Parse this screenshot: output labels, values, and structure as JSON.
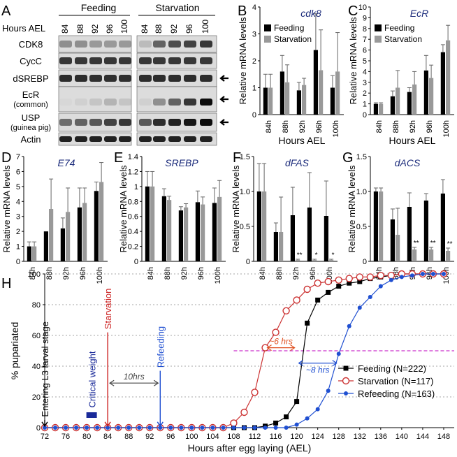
{
  "panel_letters": [
    "A",
    "B",
    "C",
    "D",
    "E",
    "F",
    "G",
    "H"
  ],
  "blot": {
    "group_feeding": "Feeding",
    "group_starvation": "Starvation",
    "hours_label": "Hours AEL",
    "lanes_feeding": [
      "84",
      "88",
      "92",
      "96",
      "100"
    ],
    "lanes_starvation": [
      "84",
      "88",
      "92",
      "96",
      "100"
    ],
    "rows": [
      {
        "line1": "CDK8",
        "line2": "",
        "arrow": false
      },
      {
        "line1": "CycC",
        "line2": "",
        "arrow": false
      },
      {
        "line1": "dSREBP",
        "line2": "",
        "arrow": true
      },
      {
        "line1": "EcR",
        "line2": "(common)",
        "arrow": true
      },
      {
        "line1": "USP",
        "line2": "(guinea pig)",
        "arrow": true
      },
      {
        "line1": "Actin",
        "line2": "",
        "arrow": false
      }
    ],
    "intensity_feeding": [
      [
        0.35,
        0.35,
        0.3,
        0.3,
        0.3
      ],
      [
        0.75,
        0.75,
        0.75,
        0.75,
        0.75
      ],
      [
        0.8,
        0.8,
        0.78,
        0.78,
        0.78
      ],
      [
        0.02,
        0.05,
        0.1,
        0.18,
        0.1
      ],
      [
        0.5,
        0.55,
        0.6,
        0.7,
        0.75
      ],
      [
        0.85,
        0.85,
        0.85,
        0.85,
        0.85
      ]
    ],
    "intensity_starvation": [
      [
        0.15,
        0.55,
        0.65,
        0.7,
        0.75
      ],
      [
        0.75,
        0.75,
        0.75,
        0.75,
        0.75
      ],
      [
        0.8,
        0.8,
        0.8,
        0.8,
        0.8
      ],
      [
        0.05,
        0.35,
        0.55,
        0.75,
        0.95
      ],
      [
        0.6,
        0.8,
        0.85,
        0.9,
        0.95
      ],
      [
        0.85,
        0.85,
        0.85,
        0.85,
        0.85
      ]
    ]
  },
  "chart_data": [
    {
      "panel": "B",
      "type": "bar",
      "title": "cdk8",
      "ylabel": "Relative mRNA levels",
      "xlabel": "Hours AEL",
      "categories": [
        "84h",
        "88h",
        "92h",
        "96h",
        "100h"
      ],
      "ylim": [
        0,
        4
      ],
      "yticks": [
        0,
        1,
        2,
        3,
        4
      ],
      "legend": true,
      "series": [
        {
          "name": "Feeding",
          "color": "#000000",
          "values": [
            1.0,
            1.6,
            0.9,
            2.4,
            1.0
          ],
          "errors": [
            0.5,
            0.6,
            0.3,
            1.35,
            0.45
          ]
        },
        {
          "name": "Starvation",
          "color": "#999999",
          "values": [
            1.0,
            1.2,
            1.1,
            1.65,
            1.6
          ],
          "errors": [
            0.5,
            0.65,
            0.25,
            1.5,
            1.45
          ]
        }
      ],
      "annotations": []
    },
    {
      "panel": "C",
      "type": "bar",
      "title": "EcR",
      "ylabel": "Relative mRNA levels",
      "xlabel": "Hours AEL",
      "categories": [
        "84h",
        "88h",
        "92h",
        "96h",
        "100h"
      ],
      "ylim": [
        0,
        10
      ],
      "yticks": [
        0,
        1,
        2,
        3,
        4,
        5,
        6,
        7,
        8,
        9,
        10
      ],
      "legend": true,
      "series": [
        {
          "name": "Feeding",
          "color": "#000000",
          "values": [
            1.0,
            1.7,
            2.1,
            4.1,
            5.8
          ],
          "errors": [
            0.1,
            0.5,
            0.4,
            1.4,
            0.7
          ]
        },
        {
          "name": "Starvation",
          "color": "#999999",
          "values": [
            1.0,
            2.5,
            2.8,
            3.4,
            6.9
          ],
          "errors": [
            0.1,
            1.6,
            1.2,
            1.2,
            1.4
          ]
        }
      ],
      "annotations": []
    },
    {
      "panel": "D",
      "type": "bar",
      "title": "E74",
      "ylabel": "Relative mRNA levels",
      "xlabel": "",
      "categories": [
        "84h",
        "88h",
        "92h",
        "96h",
        "100h"
      ],
      "ylim": [
        0,
        7
      ],
      "yticks": [
        0,
        1,
        2,
        3,
        4,
        5,
        6,
        7
      ],
      "legend": false,
      "series": [
        {
          "name": "Feeding",
          "color": "#000000",
          "values": [
            1.0,
            2.0,
            2.2,
            3.6,
            4.7
          ],
          "errors": [
            0.3,
            0,
            0.7,
            1.3,
            0.6
          ]
        },
        {
          "name": "Starvation",
          "color": "#999999",
          "values": [
            1.0,
            3.5,
            3.3,
            3.9,
            5.3
          ],
          "errors": [
            0.3,
            2.0,
            1.6,
            1.0,
            1.3
          ]
        }
      ],
      "annotations": []
    },
    {
      "panel": "E",
      "type": "bar",
      "title": "SREBP",
      "ylabel": "Relative mRNA levels",
      "xlabel": "",
      "categories": [
        "84h",
        "88h",
        "92h",
        "96h",
        "100h"
      ],
      "ylim": [
        0,
        1.4
      ],
      "yticks": [
        0,
        0.2,
        0.4,
        0.6,
        0.8,
        1,
        1.2,
        1.4
      ],
      "ytick_labels": [
        "0",
        "0.2",
        "0.4",
        "0.6",
        "0.8",
        "1",
        "1.2",
        "1.4"
      ],
      "legend": false,
      "series": [
        {
          "name": "Feeding",
          "color": "#000000",
          "values": [
            1.0,
            0.87,
            0.68,
            0.79,
            0.78
          ],
          "errors": [
            0.2,
            0.1,
            0.05,
            0.15,
            0.2
          ]
        },
        {
          "name": "Starvation",
          "color": "#999999",
          "values": [
            1.0,
            0.82,
            0.72,
            0.76,
            0.86
          ],
          "errors": [
            0.2,
            0.05,
            0.05,
            0.1,
            0.22
          ]
        }
      ],
      "annotations": []
    },
    {
      "panel": "F",
      "type": "bar",
      "title": "dFAS",
      "ylabel": "Relative mRNA levels",
      "xlabel": "",
      "categories": [
        "84h",
        "88h",
        "92h",
        "96h",
        "100h"
      ],
      "ylim": [
        0,
        1.5
      ],
      "yticks": [
        0,
        0.5,
        1,
        1.5
      ],
      "ytick_labels": [
        "0",
        "0.5",
        "1.0",
        "1.5"
      ],
      "legend": false,
      "series": [
        {
          "name": "Feeding",
          "color": "#000000",
          "values": [
            1.0,
            0.42,
            0.66,
            0.77,
            0.65
          ],
          "errors": [
            0.4,
            0.13,
            0.4,
            0.5,
            0.5
          ]
        },
        {
          "name": "Starvation",
          "color": "#999999",
          "values": [
            1.0,
            0.42,
            0.02,
            0.02,
            0.02
          ],
          "errors": [
            0.4,
            0.5,
            0.01,
            0.01,
            0.01
          ]
        }
      ],
      "annotations": [
        "",
        "",
        "**",
        "*",
        "*"
      ]
    },
    {
      "panel": "G",
      "type": "bar",
      "title": "dACS",
      "ylabel": "Relative mRNA levels",
      "xlabel": "",
      "categories": [
        "84h",
        "88h",
        "92h",
        "96h",
        "100h"
      ],
      "ylim": [
        0,
        1.5
      ],
      "yticks": [
        0,
        0.5,
        1,
        1.5
      ],
      "ytick_labels": [
        "0",
        "0.5",
        "1.0",
        "1.5"
      ],
      "legend": false,
      "series": [
        {
          "name": "Feeding",
          "color": "#000000",
          "values": [
            1.0,
            0.6,
            0.78,
            0.87,
            0.97
          ],
          "errors": [
            0.05,
            0.15,
            0.2,
            0.1,
            0.2
          ]
        },
        {
          "name": "Starvation",
          "color": "#999999",
          "values": [
            1.0,
            0.38,
            0.17,
            0.17,
            0.15
          ],
          "errors": [
            0.05,
            0.38,
            0.03,
            0.03,
            0.04
          ]
        }
      ],
      "annotations": [
        "",
        "",
        "**",
        "**",
        "**"
      ]
    },
    {
      "panel": "H",
      "type": "line",
      "ylabel": "% pupariated",
      "xlabel": "Hours after egg laying (AEL)",
      "xlim": [
        72,
        150
      ],
      "ylim": [
        0,
        100
      ],
      "xticks": [
        72,
        76,
        80,
        84,
        88,
        92,
        96,
        100,
        104,
        108,
        112,
        116,
        120,
        124,
        128,
        132,
        136,
        140,
        144,
        148
      ],
      "yticks": [
        0,
        20,
        40,
        60,
        80,
        100
      ],
      "grid": true,
      "legend_position": "bottom-right",
      "series": [
        {
          "name": "Feeding (N=222)",
          "color": "#000000",
          "marker": "square",
          "x": [
            72,
            74,
            76,
            78,
            80,
            82,
            84,
            86,
            88,
            90,
            92,
            94,
            96,
            98,
            100,
            102,
            104,
            106,
            108,
            110,
            112,
            114,
            116,
            118,
            120,
            122,
            124,
            126,
            128,
            130,
            132,
            134,
            136,
            138,
            140,
            142,
            144,
            146,
            148
          ],
          "y": [
            0,
            0,
            0,
            0,
            0,
            0,
            0,
            0,
            0,
            0,
            0,
            0,
            0,
            0,
            0,
            0,
            0,
            0,
            0,
            0,
            0,
            1,
            3,
            7,
            17,
            68,
            83,
            88,
            92,
            94,
            95,
            97,
            98,
            99,
            100,
            100,
            100,
            100,
            100
          ]
        },
        {
          "name": "Starvation (N=117)",
          "color": "#cc3333",
          "marker": "open-circle",
          "x": [
            72,
            74,
            76,
            78,
            80,
            82,
            84,
            86,
            88,
            90,
            92,
            94,
            96,
            98,
            100,
            102,
            104,
            106,
            108,
            110,
            112,
            114,
            116,
            118,
            120,
            122,
            124,
            126,
            128,
            130,
            132,
            134,
            136,
            138,
            140,
            142,
            144,
            146,
            148
          ],
          "y": [
            0,
            0,
            0,
            0,
            0,
            0,
            0,
            0,
            0,
            0,
            0,
            0,
            0,
            0,
            0,
            0,
            0,
            0,
            3,
            10,
            23,
            52,
            62,
            76,
            83,
            90,
            94,
            95,
            96,
            97,
            98,
            98,
            99,
            99,
            100,
            100,
            100,
            100,
            100
          ]
        },
        {
          "name": "Refeeding (N=163)",
          "color": "#1f4fd1",
          "marker": "filled-circle",
          "x": [
            72,
            74,
            76,
            78,
            80,
            82,
            84,
            86,
            88,
            90,
            92,
            94,
            96,
            98,
            100,
            102,
            104,
            106,
            108,
            110,
            112,
            114,
            116,
            118,
            120,
            122,
            124,
            126,
            128,
            130,
            132,
            134,
            136,
            138,
            140,
            142,
            144,
            146,
            148
          ],
          "y": [
            0,
            0,
            0,
            0,
            0,
            0,
            0,
            0,
            0,
            0,
            0,
            0,
            0,
            0,
            0,
            0,
            0,
            0,
            0,
            0,
            0,
            0,
            0,
            0,
            2,
            6,
            12,
            24,
            48,
            66,
            78,
            85,
            92,
            96,
            98,
            99,
            100,
            100,
            100
          ]
        }
      ],
      "half_line": {
        "y": 50,
        "x_from": 108,
        "x_to": 150,
        "color": "#cc33cc"
      },
      "annotations": {
        "entering": {
          "text": "Entering L3 larval stage",
          "x": 72,
          "color": "#000000"
        },
        "critical": {
          "text": "Critical weight",
          "x": 81,
          "color": "#1a2a99"
        },
        "starvation": {
          "text": "Starvation",
          "x": 84,
          "color": "#cc2222"
        },
        "refeeding": {
          "text": "Refeeding",
          "x": 94,
          "color": "#1f4fd1"
        },
        "ten_hrs": {
          "text": "10hrs",
          "x_from": 84,
          "x_to": 94,
          "y": 29
        },
        "six_hrs": {
          "text": "~6 hrs",
          "x_from": 114,
          "x_to": 120,
          "y": 52,
          "color": "#e05020"
        },
        "eight_hrs": {
          "text": "~8 hrs",
          "x_from": 120,
          "x_to": 128,
          "y": 42,
          "color": "#1f4fd1"
        }
      }
    }
  ]
}
